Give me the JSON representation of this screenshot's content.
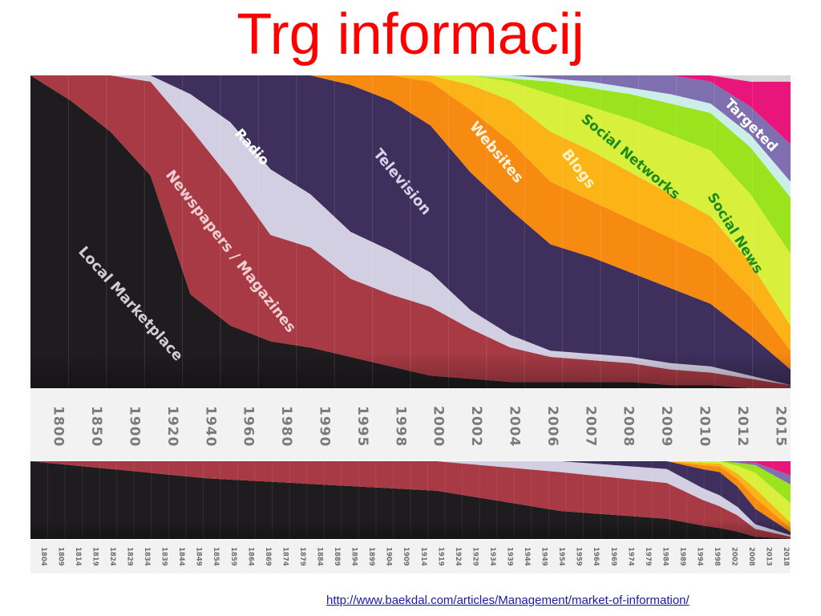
{
  "slide": {
    "title": "Trg informacij",
    "source_url": "http://www.baekdal.com/articles/Management/market-of-information/"
  },
  "colors": {
    "local_marketplace": "#1e1c1e",
    "newspapers": "#a73a44",
    "radio": "#d3cfe3",
    "television": "#3e2f5c",
    "websites": "#f78b12",
    "blogs": "#fbb316",
    "social_networks": "#d8ef3c",
    "social_news": "#9be31c",
    "other": "#7f6fb0",
    "light_blue": "#cceee9",
    "targeted": "#e8167b",
    "top_gray": "#d6d6d6",
    "title_red": "#ff0000",
    "axis_panel": "#f2f2f2"
  },
  "chart_data": [
    {
      "type": "area",
      "stacked": true,
      "normalized": true,
      "x": [
        "1800",
        "1850",
        "1900",
        "1920",
        "1940",
        "1960",
        "1980",
        "1990",
        "1995",
        "1998",
        "2000",
        "2002",
        "2004",
        "2006",
        "2007",
        "2008",
        "2009",
        "2010",
        "2012",
        "2015"
      ],
      "series": [
        {
          "name": "Local Marketplace",
          "color_key": "local_marketplace",
          "values": [
            100,
            92,
            82,
            68,
            30,
            20,
            15,
            13,
            10,
            7,
            4,
            3,
            2,
            2,
            2,
            2,
            1,
            1,
            0,
            0
          ]
        },
        {
          "name": "Newspapers / Magazines",
          "color_key": "newspapers",
          "values": [
            0,
            8,
            18,
            30,
            53,
            47,
            34,
            32,
            25,
            23,
            22,
            16,
            11,
            8,
            7,
            6,
            5,
            4,
            3,
            1
          ]
        },
        {
          "name": "Radio",
          "color_key": "radio",
          "values": [
            0,
            0,
            0,
            2,
            11,
            18,
            21,
            17,
            15,
            14,
            11,
            6,
            4,
            2,
            2,
            2,
            2,
            2,
            1,
            0
          ]
        },
        {
          "name": "Television",
          "color_key": "television",
          "values": [
            0,
            0,
            0,
            0,
            6,
            15,
            30,
            38,
            47,
            48,
            47,
            44,
            40,
            34,
            31,
            27,
            24,
            20,
            13,
            5
          ]
        },
        {
          "name": "Websites",
          "color_key": "websites",
          "values": [
            0,
            0,
            0,
            0,
            0,
            0,
            0,
            0,
            3,
            8,
            14,
            20,
            22,
            20,
            18,
            17,
            16,
            15,
            12,
            6
          ]
        },
        {
          "name": "Blogs",
          "color_key": "blogs",
          "values": [
            0,
            0,
            0,
            0,
            0,
            0,
            0,
            0,
            0,
            0,
            2,
            8,
            13,
            16,
            16,
            15,
            14,
            13,
            11,
            8
          ]
        },
        {
          "name": "Social Networks",
          "color_key": "social_networks",
          "values": [
            0,
            0,
            0,
            0,
            0,
            0,
            0,
            0,
            0,
            0,
            0,
            3,
            6,
            12,
            14,
            17,
            19,
            21,
            22,
            23
          ]
        },
        {
          "name": "Social News",
          "color_key": "social_news",
          "values": [
            0,
            0,
            0,
            0,
            0,
            0,
            0,
            0,
            0,
            0,
            0,
            0,
            1,
            4,
            6,
            8,
            10,
            12,
            15,
            18
          ]
        },
        {
          "name": "",
          "color_key": "light_blue",
          "values": [
            0,
            0,
            0,
            0,
            0,
            0,
            0,
            0,
            0,
            0,
            0,
            0,
            1,
            1,
            2,
            2,
            3,
            3,
            4,
            5
          ]
        },
        {
          "name": "",
          "color_key": "other",
          "values": [
            0,
            0,
            0,
            0,
            0,
            0,
            0,
            0,
            0,
            0,
            0,
            0,
            0,
            1,
            2,
            4,
            6,
            7,
            9,
            12
          ]
        },
        {
          "name": "Targeted",
          "color_key": "targeted",
          "values": [
            0,
            0,
            0,
            0,
            0,
            0,
            0,
            0,
            0,
            0,
            0,
            0,
            0,
            0,
            0,
            0,
            0,
            2,
            8,
            20
          ]
        },
        {
          "name": "",
          "color_key": "top_gray",
          "values": [
            0,
            0,
            0,
            0,
            0,
            0,
            0,
            0,
            0,
            0,
            0,
            0,
            0,
            0,
            0,
            0,
            0,
            0,
            2,
            2
          ]
        }
      ]
    },
    {
      "type": "area",
      "stacked": true,
      "normalized": true,
      "x": [
        "1804",
        "1809",
        "1814",
        "1819",
        "1824",
        "1829",
        "1834",
        "1839",
        "1844",
        "1849",
        "1854",
        "1859",
        "1864",
        "1869",
        "1874",
        "1879",
        "1884",
        "1889",
        "1894",
        "1899",
        "1904",
        "1909",
        "1914",
        "1919",
        "1924",
        "1929",
        "1934",
        "1939",
        "1944",
        "1949",
        "1954",
        "1959",
        "1964",
        "1969",
        "1974",
        "1979",
        "1984",
        "1989",
        "1994",
        "1998",
        "2002",
        "2008",
        "2013",
        "2018"
      ],
      "x_curve_at": [
        "1804",
        "1854",
        "1919",
        "1954",
        "1984",
        "1998",
        "2008",
        "2018"
      ],
      "series": [
        {
          "name": "Local Marketplace",
          "color_key": "local_marketplace",
          "curve": [
            100,
            78,
            62,
            36,
            26,
            14,
            3,
            0
          ]
        },
        {
          "name": "Newspapers / Magazines",
          "color_key": "newspapers",
          "curve": [
            0,
            22,
            38,
            50,
            46,
            28,
            10,
            3
          ]
        },
        {
          "name": "Radio",
          "color_key": "radio",
          "curve": [
            0,
            0,
            0,
            14,
            18,
            14,
            6,
            2
          ]
        },
        {
          "name": "Television",
          "color_key": "television",
          "curve": [
            0,
            0,
            0,
            0,
            10,
            30,
            20,
            4
          ]
        },
        {
          "name": "Websites",
          "color_key": "websites",
          "curve": [
            0,
            0,
            0,
            0,
            0,
            7,
            14,
            5
          ]
        },
        {
          "name": "Blogs",
          "color_key": "blogs",
          "curve": [
            0,
            0,
            0,
            0,
            0,
            4,
            12,
            7
          ]
        },
        {
          "name": "Social Networks",
          "color_key": "social_networks",
          "curve": [
            0,
            0,
            0,
            0,
            0,
            3,
            20,
            25
          ]
        },
        {
          "name": "Social News",
          "color_key": "social_news",
          "curve": [
            0,
            0,
            0,
            0,
            0,
            0,
            10,
            24
          ]
        },
        {
          "name": "",
          "color_key": "other",
          "curve": [
            0,
            0,
            0,
            0,
            0,
            0,
            3,
            12
          ]
        },
        {
          "name": "Targeted",
          "color_key": "targeted",
          "curve": [
            0,
            0,
            0,
            0,
            0,
            0,
            2,
            18
          ]
        }
      ]
    }
  ]
}
